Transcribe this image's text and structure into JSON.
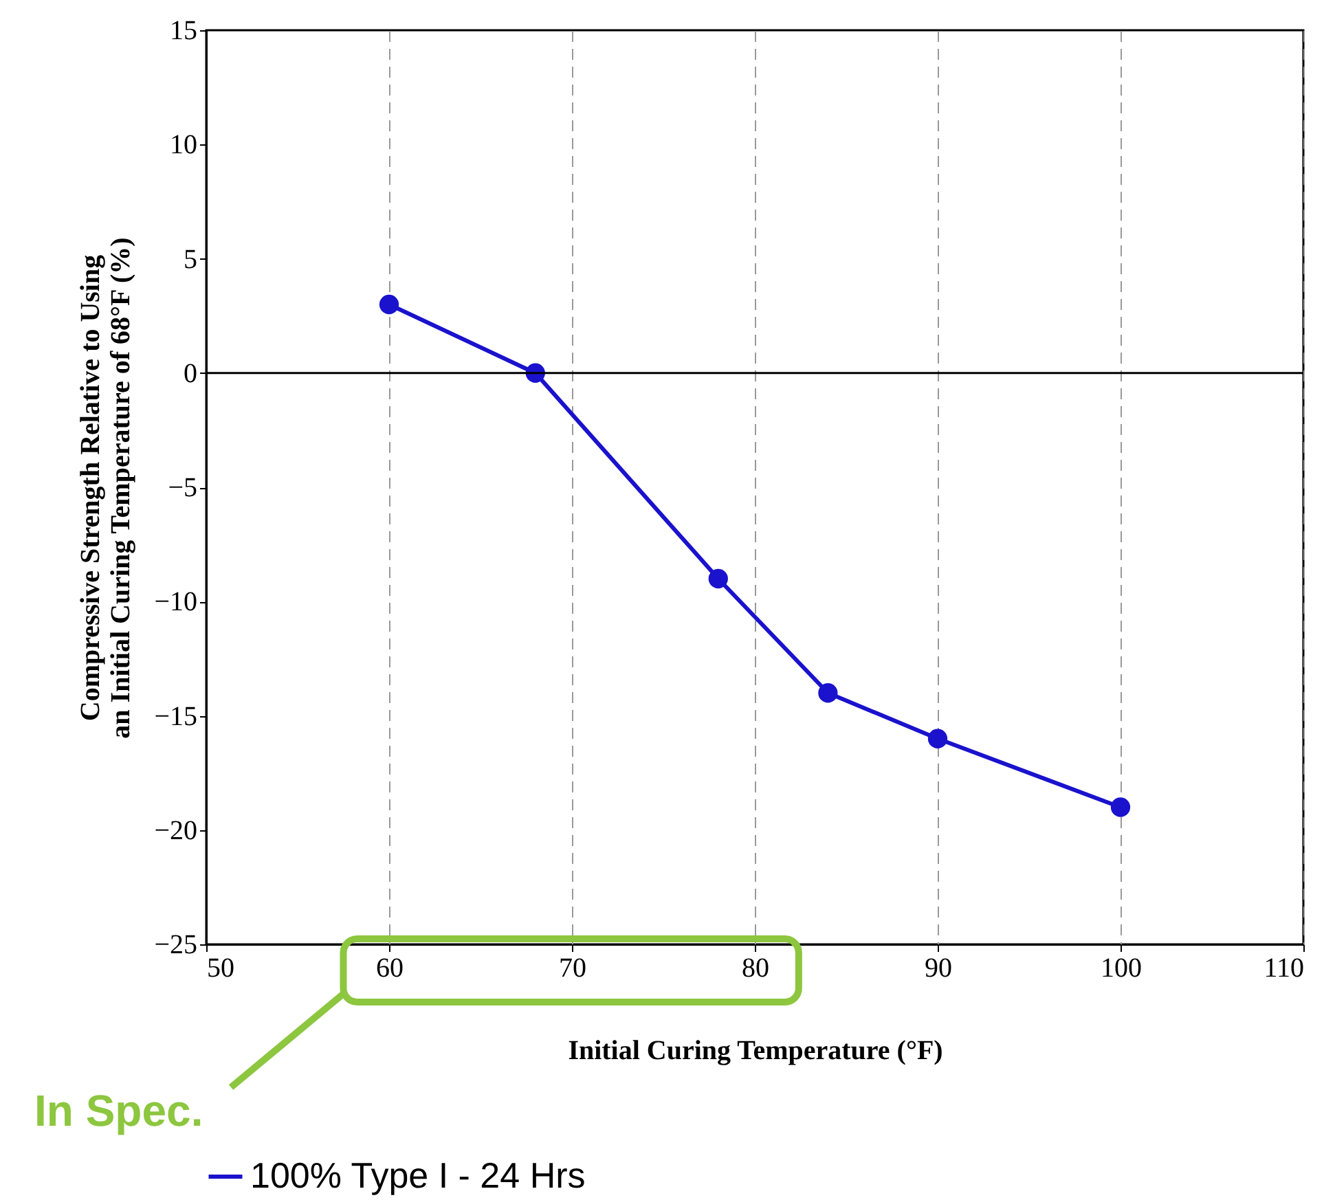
{
  "chart_data": {
    "type": "line",
    "xlabel": "Initial Curing Temperature (°F)",
    "ylabel": "Compressive Strength Relative to Using an Initial Curing Temperature of 68°F (%)",
    "x": [
      60,
      68,
      78,
      84,
      90,
      100
    ],
    "series": [
      {
        "name": "100% Type I - 24 Hrs",
        "color": "#1a12cc",
        "values": [
          3,
          0,
          -9,
          -14,
          -16,
          -19
        ]
      }
    ],
    "xlim": [
      50,
      110
    ],
    "xticks": [
      50,
      60,
      70,
      80,
      90,
      100,
      110
    ],
    "ylim": [
      -25,
      15
    ],
    "yticks": [
      -25,
      -20,
      -15,
      -10,
      -5,
      0,
      5,
      10,
      15
    ],
    "grid": "x",
    "legend": "bottom",
    "marker": "circle",
    "line_style": "solid",
    "ref_lines": [
      {
        "axis": "y",
        "value": 0,
        "color": "#000000"
      }
    ],
    "annotations": [
      "In Spec."
    ]
  }
}
